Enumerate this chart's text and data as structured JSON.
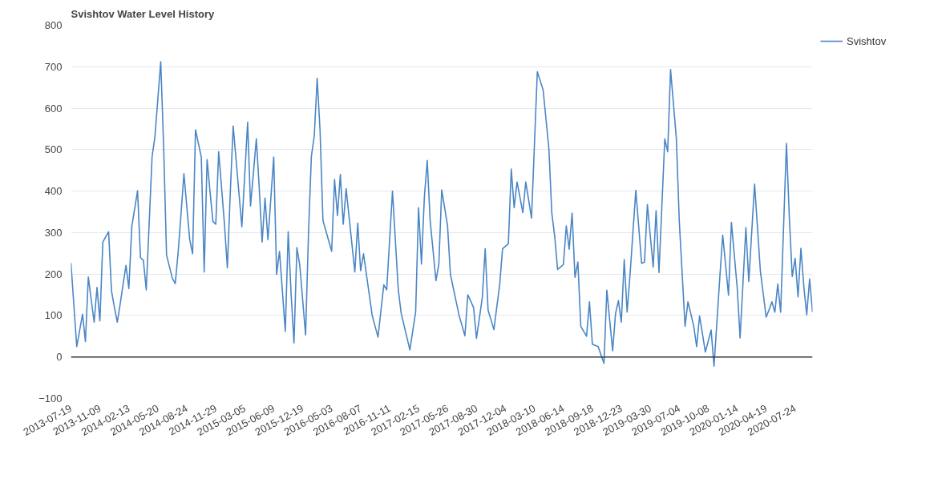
{
  "chart_data": {
    "type": "line",
    "title": "Svishtov Water Level History",
    "categories": [
      "2013-07-19",
      null,
      null,
      null,
      null,
      null,
      null,
      null,
      null,
      null,
      "2013-11-09",
      null,
      null,
      null,
      null,
      null,
      null,
      null,
      null,
      null,
      "2014-02-13",
      null,
      null,
      null,
      null,
      null,
      null,
      null,
      null,
      null,
      "2014-05-20",
      null,
      null,
      null,
      null,
      null,
      null,
      null,
      null,
      null,
      "2014-08-24",
      null,
      null,
      null,
      null,
      null,
      null,
      null,
      null,
      null,
      "2014-11-29",
      null,
      null,
      null,
      null,
      null,
      null,
      null,
      null,
      null,
      "2015-03-05",
      null,
      null,
      null,
      null,
      null,
      null,
      null,
      null,
      null,
      "2015-06-09",
      null,
      null,
      null,
      null,
      null,
      null,
      null,
      null,
      null,
      "2015-12-19",
      null,
      null,
      null,
      null,
      null,
      null,
      null,
      null,
      null,
      "2016-05-03",
      null,
      null,
      null,
      null,
      null,
      null,
      null,
      null,
      null,
      "2016-08-07",
      null,
      null,
      null,
      null,
      null,
      null,
      null,
      null,
      null,
      "2016-11-11",
      null,
      null,
      null,
      null,
      null,
      null,
      null,
      null,
      null,
      "2017-02-15",
      null,
      null,
      null,
      null,
      null,
      null,
      null,
      null,
      null,
      "2017-05-26",
      null,
      null,
      null,
      null,
      null,
      null,
      null,
      null,
      null,
      "2017-08-30",
      null,
      null,
      null,
      null,
      null,
      null,
      null,
      null,
      null,
      "2017-12-04",
      null,
      null,
      null,
      null,
      null,
      null,
      null,
      null,
      null,
      "2018-03-10",
      null,
      null,
      null,
      null,
      null,
      null,
      null,
      null,
      null,
      "2018-06-14",
      null,
      null,
      null,
      null,
      null,
      null,
      null,
      null,
      null,
      "2018-09-18",
      null,
      null,
      null,
      null,
      null,
      null,
      null,
      null,
      null,
      "2018-12-23",
      null,
      null,
      null,
      null,
      null,
      null,
      null,
      null,
      null,
      "2019-03-30",
      null,
      null,
      null,
      null,
      null,
      null,
      null,
      null,
      null,
      "2019-07-04",
      null,
      null,
      null,
      null,
      null,
      null,
      null,
      null,
      null,
      "2019-10-08",
      null,
      null,
      null,
      null,
      null,
      null,
      null,
      null,
      null,
      "2020-01-14",
      null,
      null,
      null,
      null,
      null,
      null,
      null,
      null,
      null,
      "2020-04-19",
      null,
      null,
      null,
      null,
      null,
      null,
      null,
      null,
      null,
      "2020-07-24",
      null,
      null,
      null,
      null,
      null,
      null
    ],
    "ylim": [
      -100,
      800
    ],
    "yticks": [
      -100,
      0,
      100,
      200,
      300,
      400,
      500,
      600,
      700,
      800
    ],
    "grid": "y",
    "legend": "top right",
    "marker": "none",
    "line_style": "solid",
    "ref_lines": [
      {
        "axis": "y",
        "value": 0,
        "color": "#333333"
      }
    ],
    "series": [
      {
        "name": "Svishtov",
        "color": "#4a86c5",
        "values": [
          227,
          126,
          25,
          64,
          103,
          37,
          193,
          138,
          84,
          168,
          87,
          277,
          290,
          302,
          159,
          120,
          84,
          128,
          175,
          221,
          165,
          314,
          358,
          401,
          240,
          233,
          162,
          322,
          482,
          532,
          622,
          712,
          507,
          246,
          218,
          190,
          177,
          252,
          345,
          442,
          362,
          283,
          249,
          548,
          515,
          482,
          205,
          476,
          400,
          327,
          320,
          495,
          408,
          320,
          215,
          395,
          557,
          476,
          395,
          314,
          440,
          566,
          364,
          445,
          526,
          408,
          277,
          383,
          283,
          382,
          482,
          199,
          255,
          158,
          62,
          302,
          152,
          34,
          264,
          221,
          137,
          53,
          298,
          484,
          533,
          672,
          545,
          329,
          304,
          280,
          255,
          428,
          341,
          440,
          320,
          406,
          339,
          272,
          205,
          323,
          208,
          249,
          199,
          150,
          100,
          74,
          48,
          111,
          174,
          162,
          281,
          400,
          281,
          162,
          106,
          76,
          47,
          17,
          63,
          109,
          360,
          224,
          385,
          474,
          329,
          257,
          184,
          224,
          403,
          360,
          317,
          199,
          166,
          133,
          100,
          76,
          51,
          150,
          135,
          119,
          45,
          94,
          143,
          261,
          113,
          90,
          66,
          120,
          174,
          261,
          267,
          273,
          453,
          360,
          422,
          385,
          348,
          422,
          379,
          335,
          512,
          688,
          666,
          644,
          573,
          502,
          347,
          291,
          211,
          217,
          223,
          316,
          260,
          347,
          192,
          229,
          74,
          62,
          50,
          133,
          31,
          28,
          25,
          5,
          -15,
          161,
          88,
          15,
          105,
          136,
          84,
          235,
          108,
          198,
          300,
          402,
          314,
          226,
          229,
          368,
          292,
          217,
          353,
          204,
          365,
          526,
          495,
          693,
          610,
          526,
          328,
          201,
          74,
          133,
          104,
          74,
          25,
          99,
          56,
          12,
          38,
          65,
          -22,
          85,
          192,
          294,
          222,
          149,
          325,
          246,
          167,
          46,
          179,
          312,
          182,
          300,
          417,
          312,
          207,
          152,
          96,
          114,
          133,
          108,
          176,
          108,
          312,
          515,
          336,
          194,
          238,
          145,
          262,
          170,
          102,
          188,
          108
        ]
      }
    ]
  }
}
